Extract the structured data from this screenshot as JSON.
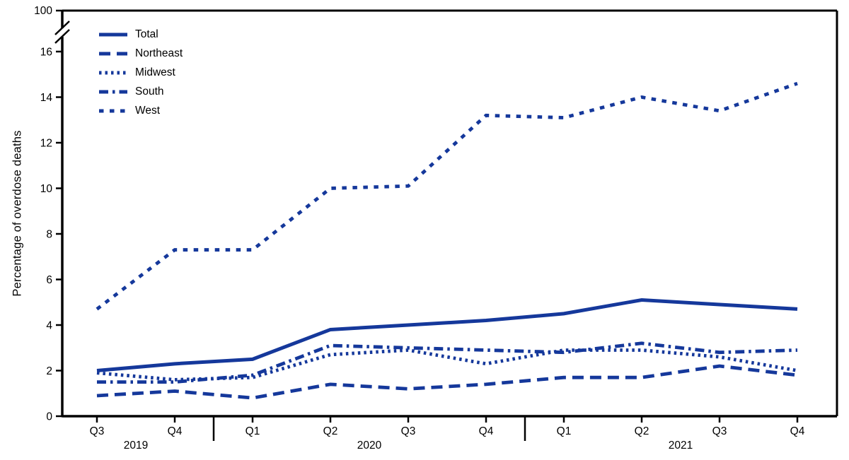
{
  "chart_data": {
    "type": "line",
    "title": "",
    "ylabel": "Percentage of overdose deaths",
    "xlabel": "",
    "line_color": "#15389b",
    "axis_color": "#000000",
    "y_axis": {
      "ticks": [
        0,
        2,
        4,
        6,
        8,
        10,
        12,
        14,
        16
      ],
      "top_tick_label": "100",
      "axis_break": true
    },
    "x_categories": [
      "Q3",
      "Q4",
      "Q1",
      "Q2",
      "Q3",
      "Q4",
      "Q1",
      "Q2",
      "Q3",
      "Q4"
    ],
    "year_groups": [
      {
        "label": "2019",
        "first": 0,
        "last": 1
      },
      {
        "label": "2020",
        "first": 2,
        "last": 5
      },
      {
        "label": "2021",
        "first": 6,
        "last": 9
      }
    ],
    "series": [
      {
        "name": "Total",
        "dash": "solid",
        "values": [
          2.0,
          2.3,
          2.5,
          3.8,
          4.0,
          4.2,
          4.5,
          5.1,
          4.9,
          4.7
        ]
      },
      {
        "name": "Northeast",
        "dash": "long-dash",
        "values": [
          0.9,
          1.1,
          0.8,
          1.4,
          1.2,
          1.4,
          1.7,
          1.7,
          2.2,
          1.8
        ]
      },
      {
        "name": "Midwest",
        "dash": "dot",
        "values": [
          1.9,
          1.6,
          1.7,
          2.7,
          2.9,
          2.3,
          2.9,
          2.9,
          2.6,
          2.0
        ]
      },
      {
        "name": "South",
        "dash": "dash-dot",
        "values": [
          1.5,
          1.5,
          1.8,
          3.1,
          3.0,
          2.9,
          2.8,
          3.2,
          2.8,
          2.9
        ]
      },
      {
        "name": "West",
        "dash": "med-dash",
        "values": [
          4.7,
          7.3,
          7.3,
          10.0,
          10.1,
          13.2,
          13.1,
          14.0,
          13.4,
          14.6
        ]
      }
    ]
  }
}
